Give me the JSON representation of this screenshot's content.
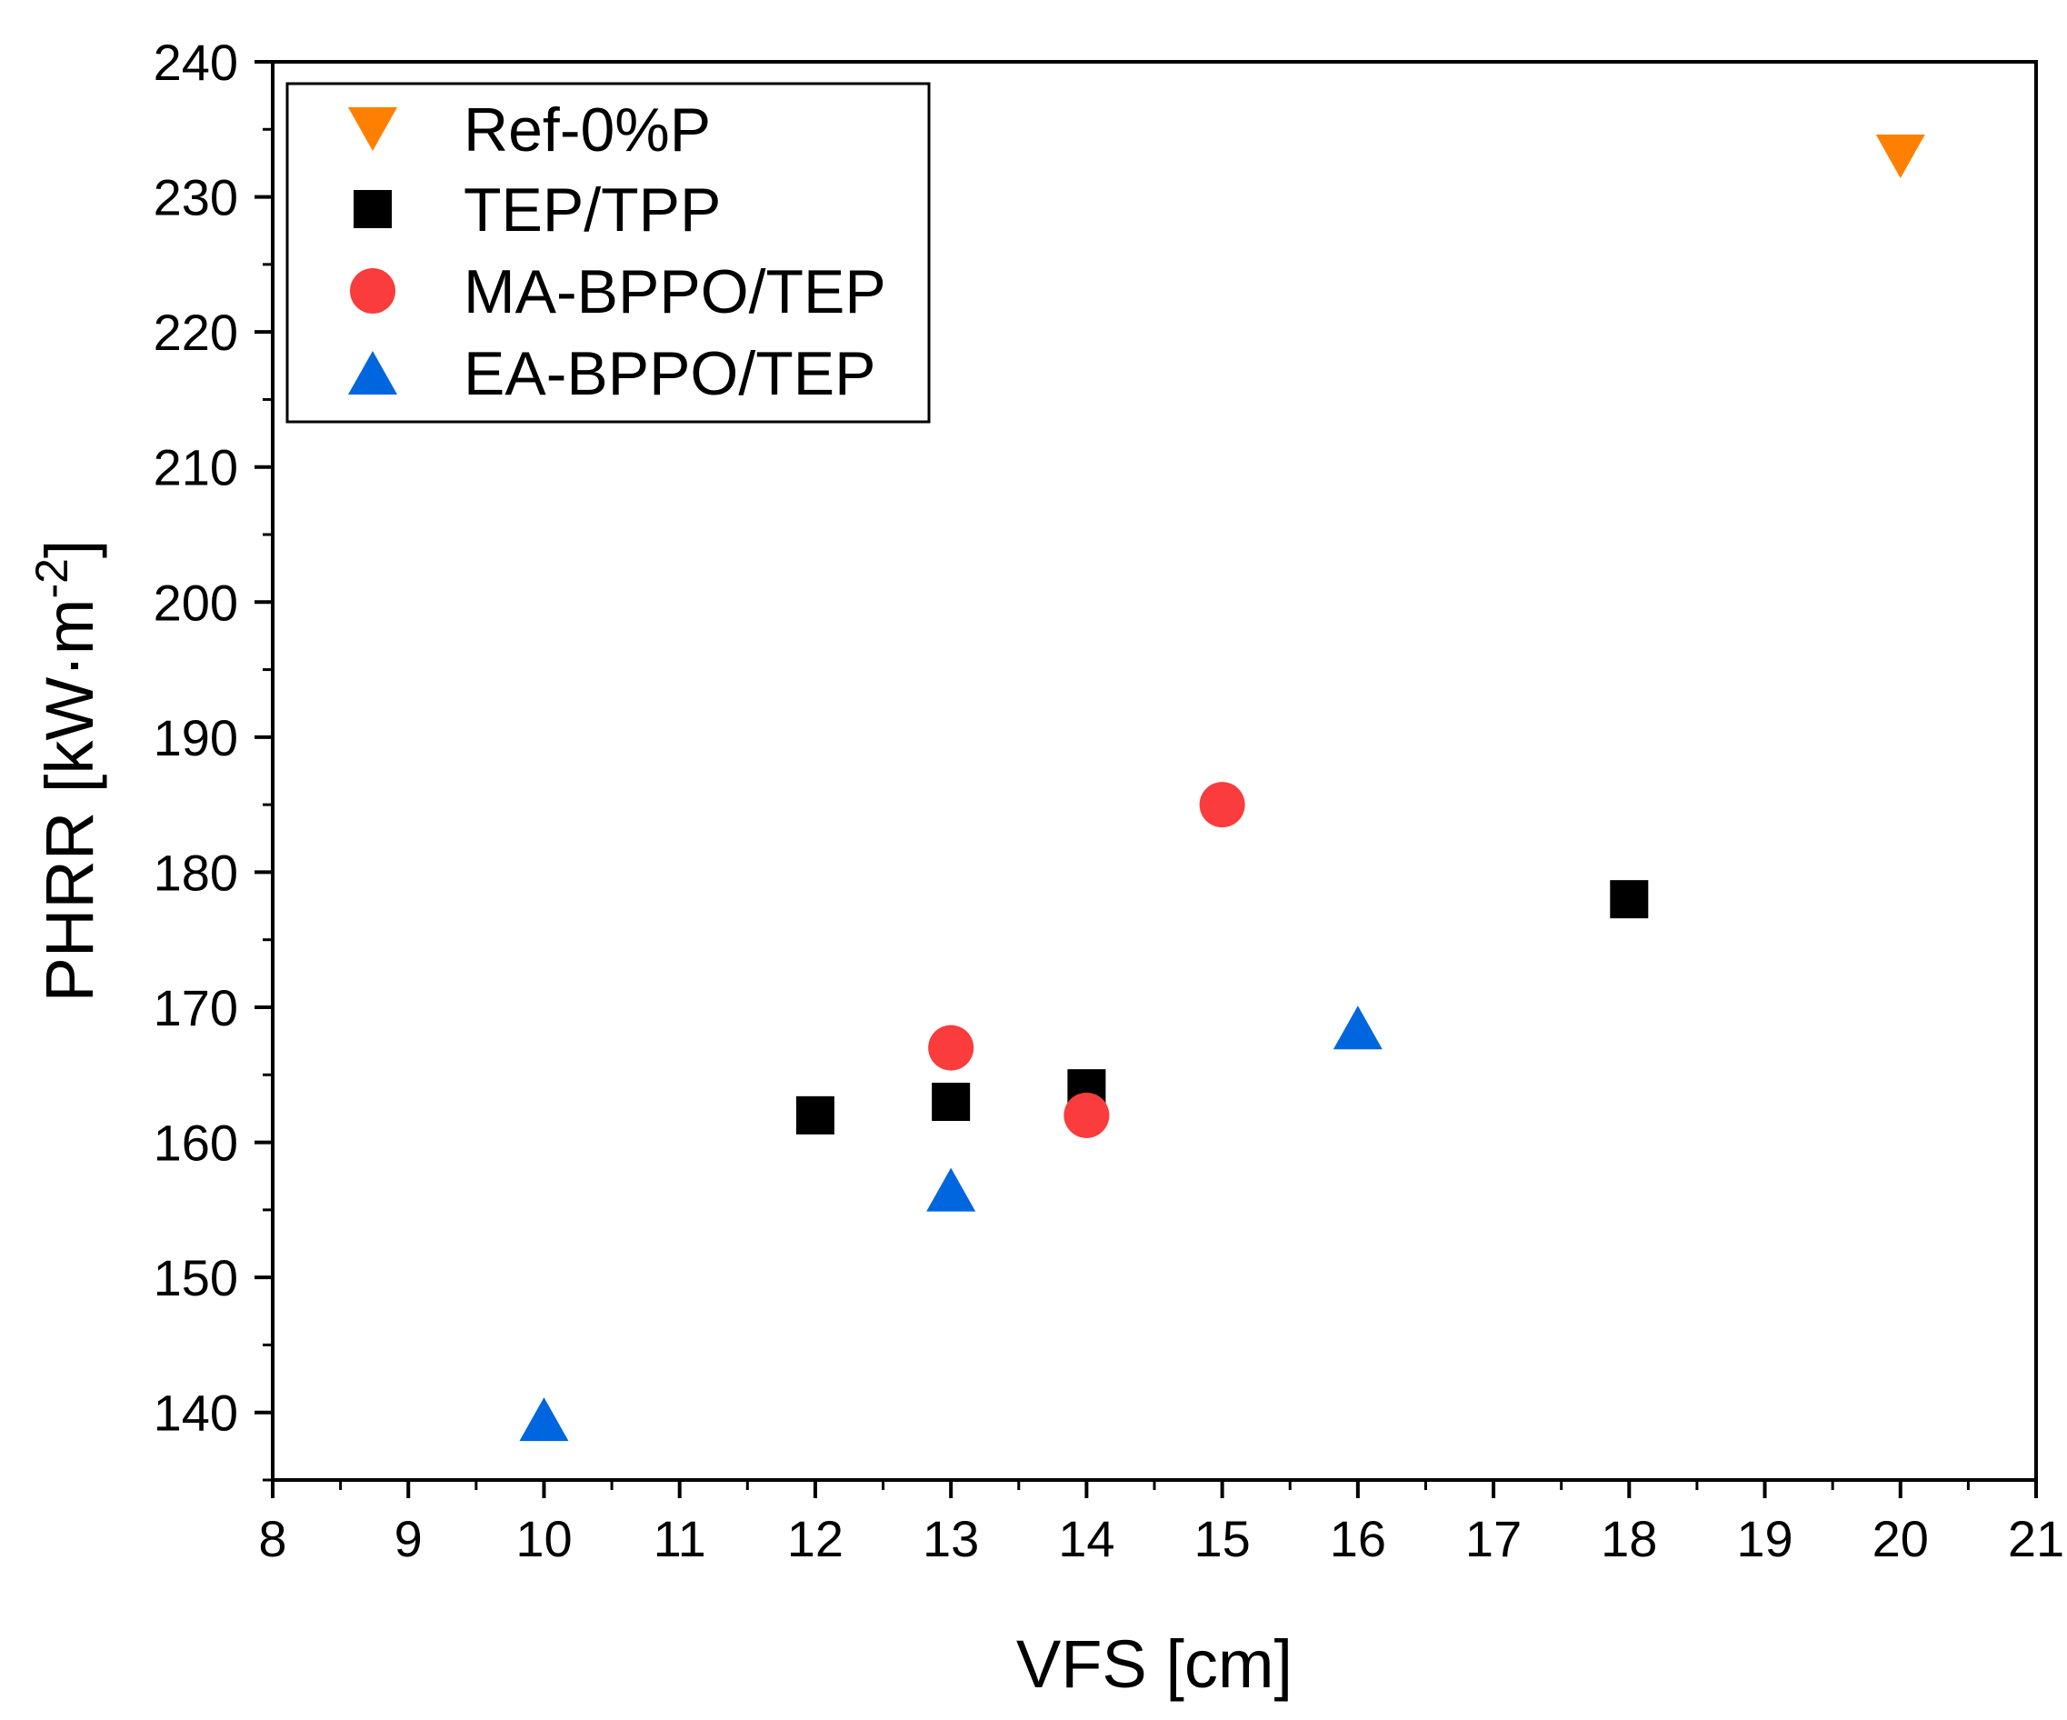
{
  "chart_data": {
    "type": "scatter",
    "title": "",
    "xlabel": "VFS [cm]",
    "ylabel_main": "PHRR [kW·m",
    "ylabel_sup": "-2",
    "ylabel_close": "]",
    "xlim": [
      8,
      21
    ],
    "ylim": [
      135,
      240
    ],
    "xticks": [
      8,
      9,
      10,
      11,
      12,
      13,
      14,
      15,
      16,
      17,
      18,
      19,
      20,
      21
    ],
    "yticks": [
      140,
      150,
      160,
      170,
      180,
      190,
      200,
      210,
      220,
      230,
      240
    ],
    "grid": false,
    "legend_position": "top-left",
    "series": [
      {
        "name": "Ref-0%P",
        "marker": "triangle-down",
        "color": "#ff8000",
        "points": [
          [
            20,
            233
          ]
        ]
      },
      {
        "name": "TEP/TPP",
        "marker": "square",
        "color": "#000000",
        "points": [
          [
            12,
            162
          ],
          [
            13,
            163
          ],
          [
            14,
            164
          ],
          [
            18,
            178
          ]
        ]
      },
      {
        "name": "MA-BPPO/TEP",
        "marker": "circle",
        "color": "#fa3c3c",
        "points": [
          [
            13,
            167
          ],
          [
            14,
            162
          ],
          [
            15,
            185
          ]
        ]
      },
      {
        "name": "EA-BPPO/TEP",
        "marker": "triangle-up",
        "color": "#0066e0",
        "points": [
          [
            10,
            139.5
          ],
          [
            13,
            156.5
          ],
          [
            16,
            168.5
          ]
        ]
      }
    ]
  }
}
